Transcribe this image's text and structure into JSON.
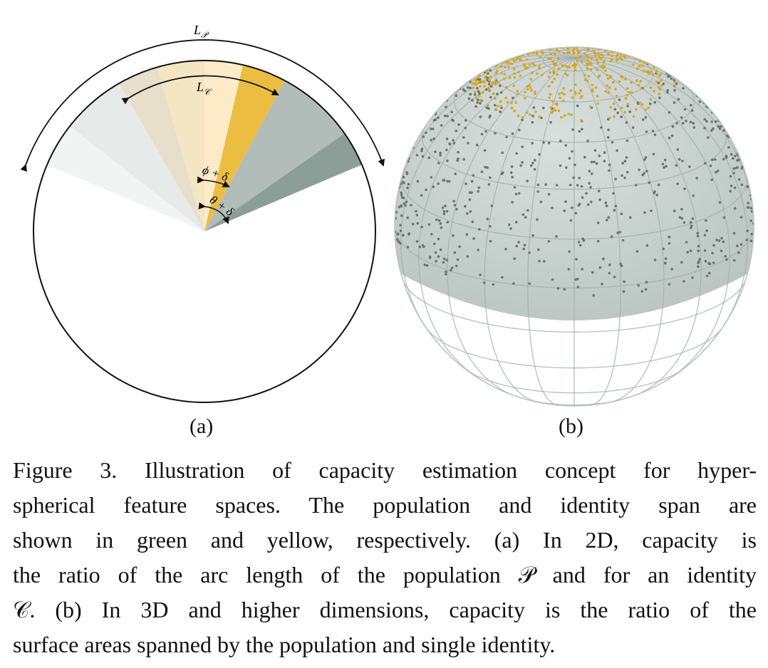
{
  "panel_a": {
    "label": "(a)",
    "arc_label_population": "L",
    "arc_label_population_sub": "𝒫",
    "arc_label_identity": "L",
    "arc_label_identity_sub": "𝒞",
    "angle_label_phi": "ϕ + δ",
    "angle_label_theta": "θ + δ"
  },
  "panel_b": {
    "label": "(b)"
  },
  "colors": {
    "population_green": "#7f948d",
    "identity_yellow": "#e8b82a",
    "sphere_fill": "#c9d3d0",
    "grid": "#a9b5b1",
    "dot_gray": "#6b7470",
    "dot_yellow": "#d9a520"
  },
  "caption": {
    "lines": [
      "Figure 3. Illustration of capacity estimation concept for hyper-",
      "spherical feature spaces.  The population and identity span are",
      "shown in green and yellow, respectively.  (a) In 2D, capacity is",
      "the ratio of the arc length of the population 𝒫 and for an identity",
      "𝒞.  (b) In 3D and higher dimensions, capacity is the ratio of the",
      "surface areas spanned by the population and single identity."
    ]
  }
}
